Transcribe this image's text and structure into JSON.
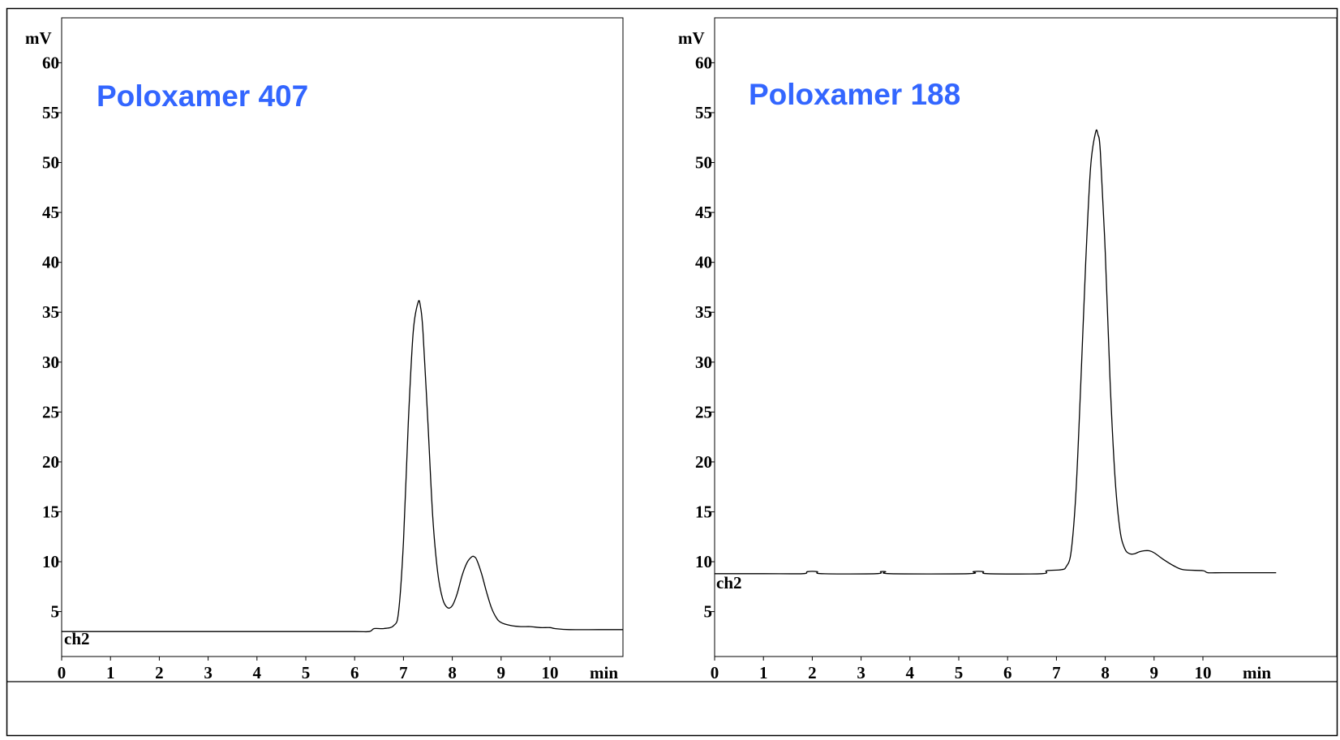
{
  "colors": {
    "title": "#3366ff",
    "trace": "#000000",
    "frame": "#000000"
  },
  "chart_data": [
    {
      "type": "line",
      "title": "Poloxamer 407",
      "ylabel": "mV",
      "xlabel": "min",
      "channel": "ch2",
      "xlim": [
        0,
        11.5
      ],
      "ylim": [
        0.5,
        64.5
      ],
      "x_ticks": [
        "0",
        "1",
        "2",
        "3",
        "4",
        "5",
        "6",
        "7",
        "8",
        "9",
        "10"
      ],
      "y_ticks": [
        "5",
        "10",
        "15",
        "20",
        "25",
        "30",
        "35",
        "40",
        "45",
        "50",
        "55",
        "60"
      ],
      "series": [
        {
          "x": [
            0,
            1,
            2,
            3,
            4,
            5,
            6,
            6.3,
            6.4,
            6.6,
            6.8,
            6.9,
            7.0,
            7.1,
            7.2,
            7.3,
            7.35,
            7.4,
            7.5,
            7.6,
            7.7,
            7.8,
            7.9,
            8.0,
            8.1,
            8.2,
            8.3,
            8.4,
            8.45,
            8.5,
            8.6,
            8.7,
            8.8,
            8.9,
            9.0,
            9.2,
            9.4,
            9.6,
            9.8,
            10.0,
            10.1,
            10.4,
            11.0,
            11.5
          ],
          "y": [
            3.0,
            3.0,
            3.0,
            3.0,
            3.0,
            3.0,
            3.0,
            3.0,
            3.3,
            3.3,
            3.6,
            5.0,
            12.0,
            24.0,
            33.0,
            36.0,
            35.5,
            33.0,
            24.0,
            14.5,
            9.0,
            6.3,
            5.4,
            5.6,
            6.8,
            8.6,
            9.9,
            10.5,
            10.5,
            10.2,
            8.8,
            7.0,
            5.4,
            4.4,
            3.9,
            3.6,
            3.5,
            3.5,
            3.4,
            3.4,
            3.3,
            3.2,
            3.2,
            3.2
          ]
        }
      ]
    },
    {
      "type": "line",
      "title": "Poloxamer 188",
      "ylabel": "mV",
      "xlabel": "min",
      "channel": "ch2",
      "xlim": [
        0,
        11.5
      ],
      "ylim": [
        0.5,
        64.5
      ],
      "x_ticks": [
        "0",
        "1",
        "2",
        "3",
        "4",
        "5",
        "6",
        "7",
        "8",
        "9",
        "10"
      ],
      "y_ticks": [
        "5",
        "10",
        "15",
        "20",
        "25",
        "30",
        "35",
        "40",
        "45",
        "50",
        "55",
        "60"
      ],
      "series": [
        {
          "x": [
            0,
            1,
            1.8,
            1.9,
            2.1,
            2.2,
            3.3,
            3.4,
            3.5,
            3.6,
            5.2,
            5.3,
            5.5,
            5.6,
            6.7,
            6.8,
            7.1,
            7.2,
            7.3,
            7.4,
            7.5,
            7.6,
            7.7,
            7.8,
            7.85,
            7.9,
            8.0,
            8.1,
            8.2,
            8.3,
            8.4,
            8.5,
            8.6,
            8.7,
            8.8,
            8.9,
            9.0,
            9.2,
            9.4,
            9.6,
            10.0,
            10.1,
            10.4,
            11.0,
            11.5
          ],
          "y": [
            8.8,
            8.8,
            8.8,
            9.0,
            9.0,
            8.8,
            8.8,
            9.0,
            9.0,
            8.8,
            8.8,
            9.0,
            9.0,
            8.8,
            8.8,
            9.1,
            9.2,
            9.5,
            11.0,
            17.0,
            28.0,
            40.0,
            49.5,
            53.0,
            52.8,
            51.0,
            41.0,
            28.0,
            18.5,
            13.2,
            11.3,
            10.8,
            10.8,
            11.0,
            11.1,
            11.1,
            10.9,
            10.2,
            9.6,
            9.2,
            9.1,
            8.9,
            8.9,
            8.9,
            8.9
          ]
        }
      ]
    }
  ]
}
